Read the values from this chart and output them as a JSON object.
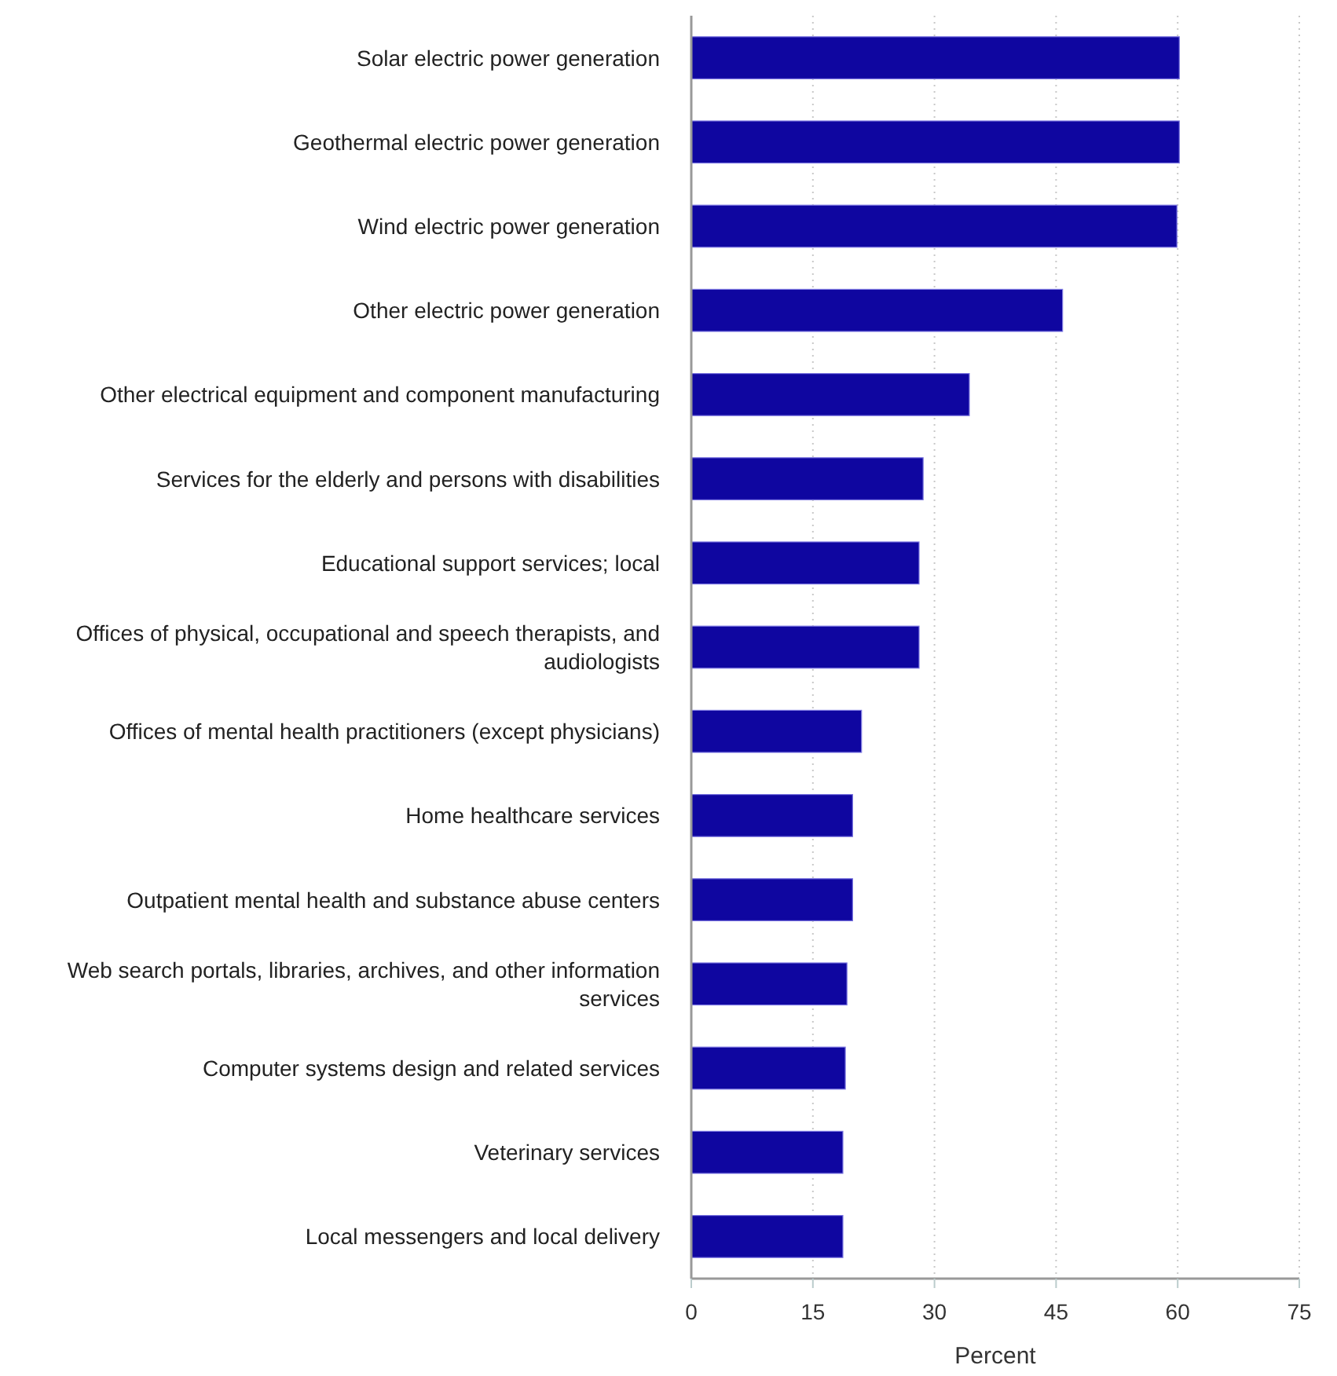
{
  "chart_data": {
    "type": "bar",
    "orientation": "horizontal",
    "xlabel": "Percent",
    "categories": [
      "Solar electric power generation",
      "Geothermal electric power generation",
      "Wind electric power generation",
      "Other electric power generation",
      "Other electrical equipment and component manufacturing",
      "Services for the elderly and persons with disabilities",
      "Educational support services; local",
      "Offices of physical, occupational and speech therapists, and audiologists",
      "Offices of mental health practitioners (except physicians)",
      "Home healthcare services",
      "Outpatient mental health and substance abuse centers",
      "Web search portals, libraries, archives, and other information services",
      "Computer systems design and related services",
      "Veterinary services",
      "Local messengers and local delivery"
    ],
    "values": [
      60.2,
      60.2,
      59.9,
      45.8,
      34.3,
      28.6,
      28.1,
      28.1,
      21.0,
      19.9,
      19.9,
      19.2,
      19.0,
      18.7,
      18.7
    ],
    "color": "#0f06a0",
    "xlim": [
      0,
      75
    ],
    "xticks": [
      0,
      15,
      30,
      45,
      60,
      75
    ],
    "grid": "x"
  }
}
